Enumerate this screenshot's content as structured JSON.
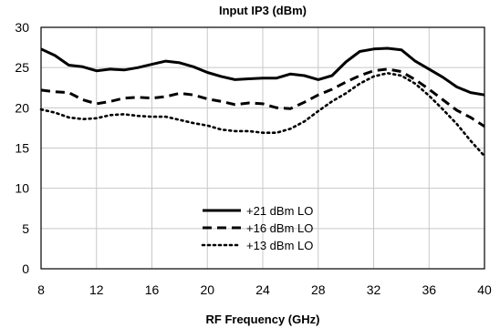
{
  "chart_data": {
    "type": "line",
    "title": "Input IP3 (dBm)",
    "xlabel": "RF Frequency (GHz)",
    "ylabel": "",
    "xlim": [
      8,
      40
    ],
    "ylim": [
      0,
      30
    ],
    "x_ticks": [
      8,
      12,
      16,
      20,
      24,
      28,
      32,
      36,
      40
    ],
    "y_ticks": [
      0,
      5,
      10,
      15,
      20,
      25,
      30
    ],
    "grid": true,
    "legend_position": "bottom-center",
    "series": [
      {
        "name": "+21 dBm LO",
        "style": "solid",
        "x": [
          8,
          9,
          10,
          11,
          12,
          13,
          14,
          15,
          16,
          17,
          18,
          19,
          20,
          21,
          22,
          23,
          24,
          25,
          26,
          27,
          28,
          29,
          30,
          31,
          32,
          33,
          34,
          35,
          36,
          37,
          38,
          39,
          40
        ],
        "y": [
          27.3,
          26.5,
          25.3,
          25.1,
          24.6,
          24.8,
          24.7,
          25.0,
          25.4,
          25.8,
          25.6,
          25.1,
          24.4,
          23.9,
          23.5,
          23.6,
          23.7,
          23.7,
          24.2,
          24.0,
          23.5,
          24.0,
          25.7,
          27.0,
          27.3,
          27.4,
          27.2,
          25.8,
          24.8,
          23.8,
          22.6,
          21.9,
          21.6
        ]
      },
      {
        "name": "+16 dBm LO",
        "style": "dashed",
        "x": [
          8,
          9,
          10,
          11,
          12,
          13,
          14,
          15,
          16,
          17,
          18,
          19,
          20,
          21,
          22,
          23,
          24,
          25,
          26,
          27,
          28,
          29,
          30,
          31,
          32,
          33,
          34,
          35,
          36,
          37,
          38,
          39,
          40
        ],
        "y": [
          22.2,
          22.0,
          21.9,
          21.0,
          20.5,
          20.8,
          21.2,
          21.3,
          21.2,
          21.4,
          21.8,
          21.6,
          21.1,
          20.8,
          20.4,
          20.6,
          20.5,
          20.0,
          19.9,
          20.7,
          21.6,
          22.3,
          23.2,
          24.0,
          24.6,
          24.8,
          24.5,
          23.5,
          22.3,
          21.0,
          19.7,
          18.8,
          17.7
        ]
      },
      {
        "name": "+13 dBm LO",
        "style": "dotted",
        "x": [
          8,
          9,
          10,
          11,
          12,
          13,
          14,
          15,
          16,
          17,
          18,
          19,
          20,
          21,
          22,
          23,
          24,
          25,
          26,
          27,
          28,
          29,
          30,
          31,
          32,
          33,
          34,
          35,
          36,
          37,
          38,
          39,
          40
        ],
        "y": [
          19.8,
          19.4,
          18.8,
          18.6,
          18.7,
          19.1,
          19.2,
          19.0,
          18.9,
          18.9,
          18.5,
          18.1,
          17.8,
          17.3,
          17.1,
          17.1,
          16.9,
          16.9,
          17.4,
          18.3,
          19.6,
          20.8,
          21.8,
          23.0,
          23.9,
          24.3,
          24.0,
          23.0,
          21.5,
          19.8,
          18.0,
          15.9,
          14.0
        ]
      }
    ]
  }
}
